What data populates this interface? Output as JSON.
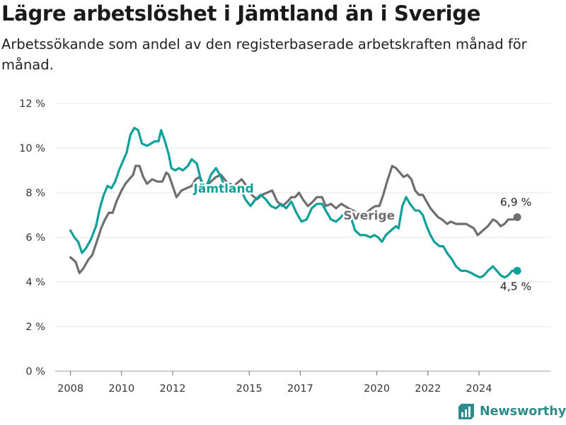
{
  "title": "Lägre arbetslöshet i Jämtland än i Sverige",
  "subtitle": "Arbetssökande som andel av den registerbaserade arbetskraften månad för månad.",
  "brand": {
    "name": "Newsworthy",
    "logo_icon": "bar-chart-logo-icon",
    "color": "#2d8b8b"
  },
  "chart_data": {
    "type": "line",
    "title": "Lägre arbetslöshet i Jämtland än i Sverige",
    "subtitle": "Arbetssökande som andel av den registerbaserade arbetskraften månad för månad.",
    "xlabel": "",
    "ylabel": "",
    "ylim": [
      0,
      12
    ],
    "xlim": [
      2007.4,
      2026.8
    ],
    "y_ticks": [
      0,
      2,
      4,
      6,
      8,
      10,
      12
    ],
    "y_tick_labels": [
      "0 %",
      "2 %",
      "4 %",
      "6 %",
      "8 %",
      "10 %",
      "12 %"
    ],
    "x_ticks": [
      2008,
      2010,
      2012,
      2015,
      2017,
      2020,
      2022,
      2024
    ],
    "x_tick_labels": [
      "2008",
      "2010",
      "2012",
      "2015",
      "2017",
      "2020",
      "2022",
      "2024"
    ],
    "grid": true,
    "legend": "inline labels",
    "series": [
      {
        "name": "Sverige",
        "color": "#6e6e72",
        "end_label": "6,9 %",
        "points": [
          [
            2008.0,
            5.1
          ],
          [
            2008.2,
            4.9
          ],
          [
            2008.35,
            4.4
          ],
          [
            2008.5,
            4.6
          ],
          [
            2008.7,
            5.0
          ],
          [
            2008.85,
            5.2
          ],
          [
            2009.0,
            5.7
          ],
          [
            2009.2,
            6.4
          ],
          [
            2009.35,
            6.8
          ],
          [
            2009.5,
            7.1
          ],
          [
            2009.65,
            7.1
          ],
          [
            2009.8,
            7.6
          ],
          [
            2010.0,
            8.1
          ],
          [
            2010.15,
            8.4
          ],
          [
            2010.3,
            8.6
          ],
          [
            2010.45,
            8.8
          ],
          [
            2010.55,
            9.2
          ],
          [
            2010.7,
            9.2
          ],
          [
            2010.85,
            8.7
          ],
          [
            2011.0,
            8.4
          ],
          [
            2011.2,
            8.6
          ],
          [
            2011.4,
            8.5
          ],
          [
            2011.6,
            8.5
          ],
          [
            2011.75,
            8.9
          ],
          [
            2011.85,
            8.8
          ],
          [
            2012.0,
            8.3
          ],
          [
            2012.15,
            7.8
          ],
          [
            2012.35,
            8.1
          ],
          [
            2012.55,
            8.2
          ],
          [
            2012.75,
            8.3
          ],
          [
            2012.9,
            8.6
          ],
          [
            2013.05,
            8.7
          ],
          [
            2013.25,
            8.2
          ],
          [
            2013.5,
            8.5
          ],
          [
            2013.7,
            8.7
          ],
          [
            2013.9,
            8.8
          ],
          [
            2014.1,
            8.5
          ],
          [
            2014.3,
            8.2
          ],
          [
            2014.5,
            8.4
          ],
          [
            2014.7,
            8.6
          ],
          [
            2014.9,
            8.3
          ],
          [
            2015.1,
            7.9
          ],
          [
            2015.3,
            7.7
          ],
          [
            2015.5,
            7.9
          ],
          [
            2015.7,
            8.0
          ],
          [
            2015.9,
            8.1
          ],
          [
            2016.1,
            7.6
          ],
          [
            2016.3,
            7.4
          ],
          [
            2016.5,
            7.6
          ],
          [
            2016.65,
            7.8
          ],
          [
            2016.8,
            7.8
          ],
          [
            2016.95,
            8.0
          ],
          [
            2017.1,
            7.7
          ],
          [
            2017.3,
            7.4
          ],
          [
            2017.5,
            7.6
          ],
          [
            2017.65,
            7.8
          ],
          [
            2017.85,
            7.8
          ],
          [
            2018.0,
            7.4
          ],
          [
            2018.2,
            7.5
          ],
          [
            2018.4,
            7.3
          ],
          [
            2018.6,
            7.5
          ],
          [
            2018.75,
            7.4
          ],
          [
            2018.9,
            7.3
          ],
          [
            2019.05,
            7.2
          ],
          [
            2019.2,
            7.1
          ],
          [
            2019.45,
            7.0
          ],
          [
            2019.6,
            7.1
          ],
          [
            2019.8,
            7.3
          ],
          [
            2019.95,
            7.4
          ],
          [
            2020.1,
            7.4
          ],
          [
            2020.25,
            7.9
          ],
          [
            2020.4,
            8.5
          ],
          [
            2020.6,
            9.2
          ],
          [
            2020.75,
            9.1
          ],
          [
            2020.9,
            8.9
          ],
          [
            2021.05,
            8.7
          ],
          [
            2021.2,
            8.8
          ],
          [
            2021.35,
            8.6
          ],
          [
            2021.5,
            8.1
          ],
          [
            2021.65,
            7.9
          ],
          [
            2021.8,
            7.9
          ],
          [
            2021.95,
            7.6
          ],
          [
            2022.1,
            7.3
          ],
          [
            2022.25,
            7.1
          ],
          [
            2022.4,
            6.9
          ],
          [
            2022.55,
            6.8
          ],
          [
            2022.75,
            6.6
          ],
          [
            2022.9,
            6.7
          ],
          [
            2023.1,
            6.6
          ],
          [
            2023.3,
            6.6
          ],
          [
            2023.5,
            6.6
          ],
          [
            2023.65,
            6.5
          ],
          [
            2023.8,
            6.4
          ],
          [
            2023.95,
            6.1
          ],
          [
            2024.15,
            6.3
          ],
          [
            2024.35,
            6.5
          ],
          [
            2024.55,
            6.8
          ],
          [
            2024.7,
            6.7
          ],
          [
            2024.85,
            6.5
          ],
          [
            2025.0,
            6.6
          ],
          [
            2025.15,
            6.8
          ],
          [
            2025.35,
            6.8
          ],
          [
            2025.5,
            6.9
          ]
        ]
      },
      {
        "name": "Jämtland",
        "color": "#0da09a",
        "end_label": "4,5 %",
        "points": [
          [
            2008.0,
            6.3
          ],
          [
            2008.15,
            6.0
          ],
          [
            2008.3,
            5.8
          ],
          [
            2008.45,
            5.3
          ],
          [
            2008.6,
            5.5
          ],
          [
            2008.8,
            5.9
          ],
          [
            2009.0,
            6.5
          ],
          [
            2009.15,
            7.3
          ],
          [
            2009.3,
            7.9
          ],
          [
            2009.45,
            8.3
          ],
          [
            2009.6,
            8.2
          ],
          [
            2009.75,
            8.5
          ],
          [
            2009.9,
            9.0
          ],
          [
            2010.05,
            9.4
          ],
          [
            2010.2,
            9.8
          ],
          [
            2010.35,
            10.6
          ],
          [
            2010.5,
            10.9
          ],
          [
            2010.65,
            10.8
          ],
          [
            2010.8,
            10.2
          ],
          [
            2011.0,
            10.1
          ],
          [
            2011.15,
            10.2
          ],
          [
            2011.3,
            10.3
          ],
          [
            2011.45,
            10.3
          ],
          [
            2011.55,
            10.8
          ],
          [
            2011.7,
            10.3
          ],
          [
            2011.85,
            9.7
          ],
          [
            2011.95,
            9.1
          ],
          [
            2012.1,
            9.0
          ],
          [
            2012.25,
            9.1
          ],
          [
            2012.4,
            9.0
          ],
          [
            2012.6,
            9.2
          ],
          [
            2012.75,
            9.5
          ],
          [
            2012.95,
            9.3
          ],
          [
            2013.1,
            8.6
          ],
          [
            2013.3,
            8.2
          ],
          [
            2013.5,
            8.8
          ],
          [
            2013.7,
            9.1
          ],
          [
            2013.9,
            8.7
          ],
          [
            2014.05,
            8.2
          ],
          [
            2014.25,
            8.4
          ],
          [
            2014.5,
            8.2
          ],
          [
            2014.7,
            8.1
          ],
          [
            2014.85,
            7.7
          ],
          [
            2015.05,
            7.4
          ],
          [
            2015.25,
            7.7
          ],
          [
            2015.45,
            7.9
          ],
          [
            2015.65,
            7.7
          ],
          [
            2015.85,
            7.4
          ],
          [
            2016.05,
            7.3
          ],
          [
            2016.25,
            7.5
          ],
          [
            2016.45,
            7.3
          ],
          [
            2016.65,
            7.6
          ],
          [
            2016.85,
            7.1
          ],
          [
            2017.05,
            6.7
          ],
          [
            2017.25,
            6.8
          ],
          [
            2017.45,
            7.3
          ],
          [
            2017.65,
            7.5
          ],
          [
            2017.85,
            7.5
          ],
          [
            2018.0,
            7.2
          ],
          [
            2018.2,
            6.8
          ],
          [
            2018.4,
            6.7
          ],
          [
            2018.6,
            6.9
          ],
          [
            2018.8,
            7.2
          ],
          [
            2018.95,
            7.0
          ],
          [
            2019.15,
            6.3
          ],
          [
            2019.35,
            6.1
          ],
          [
            2019.55,
            6.1
          ],
          [
            2019.75,
            6.0
          ],
          [
            2019.9,
            6.1
          ],
          [
            2020.05,
            6.0
          ],
          [
            2020.2,
            5.8
          ],
          [
            2020.35,
            6.1
          ],
          [
            2020.55,
            6.3
          ],
          [
            2020.75,
            6.5
          ],
          [
            2020.85,
            6.4
          ],
          [
            2021.0,
            7.4
          ],
          [
            2021.15,
            7.8
          ],
          [
            2021.3,
            7.5
          ],
          [
            2021.5,
            7.2
          ],
          [
            2021.65,
            7.2
          ],
          [
            2021.8,
            7.0
          ],
          [
            2021.95,
            6.5
          ],
          [
            2022.1,
            6.1
          ],
          [
            2022.25,
            5.8
          ],
          [
            2022.45,
            5.6
          ],
          [
            2022.6,
            5.6
          ],
          [
            2022.75,
            5.3
          ],
          [
            2022.95,
            5.0
          ],
          [
            2023.1,
            4.7
          ],
          [
            2023.3,
            4.5
          ],
          [
            2023.5,
            4.5
          ],
          [
            2023.7,
            4.4
          ],
          [
            2023.85,
            4.3
          ],
          [
            2024.05,
            4.2
          ],
          [
            2024.2,
            4.3
          ],
          [
            2024.35,
            4.5
          ],
          [
            2024.55,
            4.7
          ],
          [
            2024.7,
            4.5
          ],
          [
            2024.85,
            4.3
          ],
          [
            2025.0,
            4.2
          ],
          [
            2025.15,
            4.3
          ],
          [
            2025.3,
            4.5
          ],
          [
            2025.5,
            4.5
          ]
        ]
      }
    ]
  }
}
